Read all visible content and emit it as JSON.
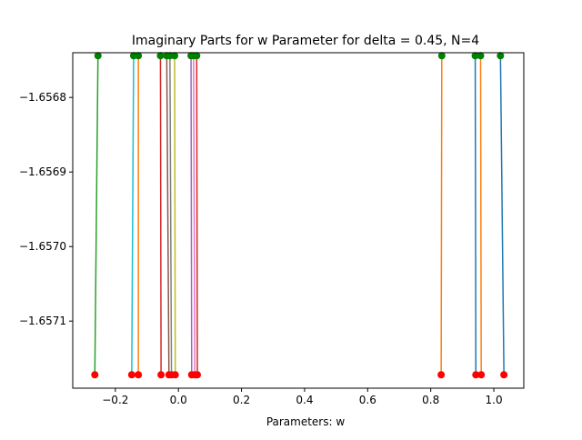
{
  "chart_data": {
    "type": "line",
    "title": "Imaginary Parts for w Parameter for delta = 0.45, N=4",
    "xlabel": "Parameters: w",
    "ylabel": "",
    "xlim": [
      -0.335,
      1.095
    ],
    "ylim": [
      -1.65719,
      -1.65674
    ],
    "x_ticks": [
      -0.2,
      0.0,
      0.2,
      0.4,
      0.6,
      0.8,
      1.0
    ],
    "x_tick_labels": [
      "−0.2",
      "0.0",
      "0.2",
      "0.4",
      "0.6",
      "0.8",
      "1.0"
    ],
    "y_ticks": [
      -1.6568,
      -1.6569,
      -1.657,
      -1.6571
    ],
    "y_tick_labels": [
      "−1.6568",
      "−1.6569",
      "−1.6570",
      "−1.6571"
    ],
    "grid": false,
    "legend": "none",
    "y_top": -1.656744,
    "y_bottom": -1.657172,
    "top_marker_color": "#008000",
    "bottom_marker_color": "#ff0000",
    "series": [
      {
        "x_top": -0.255,
        "x_bottom": -0.265,
        "color": "#2ca02c"
      },
      {
        "x_top": -0.142,
        "x_bottom": -0.148,
        "color": "#17becf"
      },
      {
        "x_top": -0.127,
        "x_bottom": -0.127,
        "color": "#ff7f0e"
      },
      {
        "x_top": -0.057,
        "x_bottom": -0.055,
        "color": "#d62728"
      },
      {
        "x_top": -0.037,
        "x_bottom": -0.03,
        "color": "#8c564b"
      },
      {
        "x_top": -0.027,
        "x_bottom": -0.022,
        "color": "#7f7f7f"
      },
      {
        "x_top": -0.012,
        "x_bottom": -0.01,
        "color": "#bcbd22"
      },
      {
        "x_top": 0.04,
        "x_bottom": 0.042,
        "color": "#9467bd"
      },
      {
        "x_top": 0.048,
        "x_bottom": 0.052,
        "color": "#e377c2"
      },
      {
        "x_top": 0.058,
        "x_bottom": 0.06,
        "color": "#d62728"
      },
      {
        "x_top": 0.835,
        "x_bottom": 0.833,
        "color": "#ff7f0e"
      },
      {
        "x_top": 0.941,
        "x_bottom": 0.943,
        "color": "#1f77b4"
      },
      {
        "x_top": 0.958,
        "x_bottom": 0.96,
        "color": "#ff7f0e"
      },
      {
        "x_top": 1.021,
        "x_bottom": 1.032,
        "color": "#1f77b4"
      }
    ]
  }
}
